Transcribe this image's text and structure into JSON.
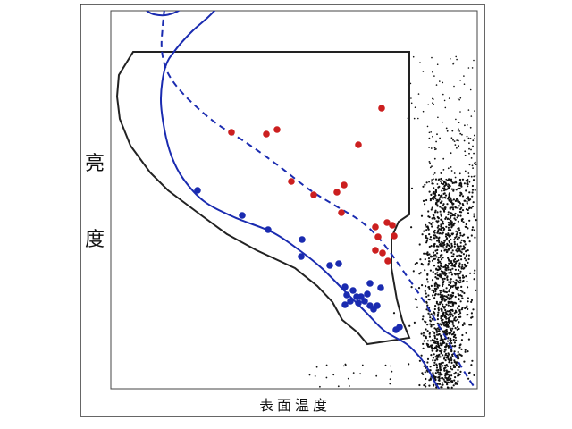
{
  "chart_data": {
    "type": "scatter",
    "title": "",
    "xlabel": "表面温度",
    "ylabel_chars": [
      "亮",
      "度"
    ],
    "axes": {
      "ticks": "none",
      "grid": false,
      "legend": "none"
    },
    "colors": {
      "red": "#cc1f1f",
      "blue": "#1a2bb0",
      "field": "#111111",
      "outline": "#222222",
      "curve": "#1a2bb0"
    },
    "series": [
      {
        "color": "red",
        "points": [
          [
            427,
            121
          ],
          [
            259,
            148
          ],
          [
            298,
            150
          ],
          [
            310,
            145
          ],
          [
            401,
            162
          ],
          [
            326,
            203
          ],
          [
            351,
            218
          ],
          [
            377,
            215
          ],
          [
            385,
            207
          ],
          [
            382,
            238
          ],
          [
            420,
            254
          ],
          [
            433,
            249
          ],
          [
            439,
            252
          ],
          [
            423,
            265
          ],
          [
            441,
            264
          ],
          [
            420,
            280
          ],
          [
            428,
            283
          ],
          [
            434,
            292
          ]
        ]
      },
      {
        "color": "blue",
        "points": [
          [
            221,
            213
          ],
          [
            271,
            241
          ],
          [
            300,
            257
          ],
          [
            338,
            268
          ],
          [
            337,
            287
          ],
          [
            369,
            297
          ],
          [
            379,
            295
          ],
          [
            386,
            321
          ],
          [
            395,
            325
          ],
          [
            388,
            330
          ],
          [
            404,
            332
          ],
          [
            408,
            337
          ],
          [
            414,
            317
          ],
          [
            426,
            322
          ],
          [
            392,
            337
          ],
          [
            399,
            332
          ],
          [
            386,
            341
          ],
          [
            401,
            339
          ],
          [
            414,
            342
          ],
          [
            418,
            346
          ],
          [
            422,
            342
          ],
          [
            411,
            329
          ],
          [
            447,
            366
          ],
          [
            443,
            369
          ]
        ]
      }
    ],
    "curves": {
      "solid": [
        [
          242,
          10
        ],
        [
          232,
          20
        ],
        [
          215,
          35
        ],
        [
          197,
          55
        ],
        [
          185,
          75
        ],
        [
          180,
          110
        ],
        [
          184,
          145
        ],
        [
          192,
          175
        ],
        [
          205,
          200
        ],
        [
          228,
          225
        ],
        [
          262,
          243
        ],
        [
          305,
          260
        ],
        [
          335,
          280
        ],
        [
          360,
          300
        ],
        [
          385,
          325
        ],
        [
          410,
          350
        ],
        [
          430,
          370
        ],
        [
          455,
          385
        ],
        [
          470,
          400
        ],
        [
          480,
          415
        ],
        [
          488,
          430
        ],
        [
          495,
          440
        ]
      ],
      "dashed": [
        [
          184,
          10
        ],
        [
          182,
          30
        ],
        [
          181,
          55
        ],
        [
          187,
          80
        ],
        [
          205,
          105
        ],
        [
          238,
          135
        ],
        [
          276,
          160
        ],
        [
          311,
          185
        ],
        [
          346,
          212
        ],
        [
          375,
          230
        ],
        [
          400,
          245
        ],
        [
          420,
          262
        ],
        [
          437,
          283
        ],
        [
          451,
          303
        ],
        [
          465,
          323
        ],
        [
          478,
          343
        ],
        [
          490,
          363
        ],
        [
          502,
          383
        ],
        [
          512,
          403
        ],
        [
          522,
          420
        ],
        [
          532,
          435
        ]
      ],
      "top_hook": [
        [
          164,
          12
        ],
        [
          172,
          16
        ],
        [
          185,
          17
        ],
        [
          198,
          13
        ],
        [
          205,
          8
        ]
      ]
    },
    "region_outline": [
      [
        149,
        58
      ],
      [
        458,
        58
      ],
      [
        458,
        240
      ],
      [
        446,
        248
      ],
      [
        438,
        266
      ],
      [
        438,
        300
      ],
      [
        444,
        335
      ],
      [
        450,
        358
      ],
      [
        458,
        378
      ],
      [
        411,
        385
      ],
      [
        400,
        372
      ],
      [
        383,
        358
      ],
      [
        372,
        338
      ],
      [
        355,
        320
      ],
      [
        330,
        300
      ],
      [
        287,
        280
      ],
      [
        254,
        262
      ],
      [
        224,
        240
      ],
      [
        188,
        213
      ],
      [
        168,
        193
      ],
      [
        146,
        163
      ],
      [
        134,
        133
      ],
      [
        131,
        108
      ],
      [
        133,
        84
      ]
    ]
  }
}
